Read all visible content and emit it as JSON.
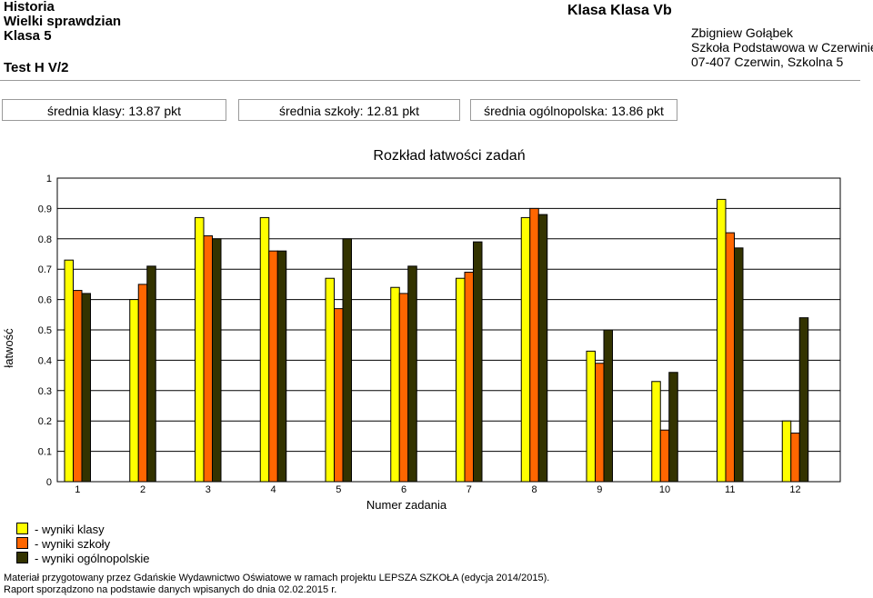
{
  "header": {
    "subject": "Historia",
    "test_name": "Wielki sprawdzian",
    "grade": "Klasa 5",
    "test_code": "Test H V/2",
    "class_label": "Klasa Klasa Vb",
    "teacher": "Zbigniew Gołąbek",
    "school": "Szkoła Podstawowa w Czerwinie",
    "address": "07-407 Czerwin, Szkolna 5"
  },
  "stats": {
    "class_avg": "średnia klasy: 13.87 pkt",
    "school_avg": "średnia szkoły: 12.81 pkt",
    "national_avg": "średnia ogólnopolska: 13.86 pkt"
  },
  "chart_data": {
    "type": "bar",
    "title": "Rozkład łatwości zadań",
    "xlabel": "Numer zadania",
    "ylabel": "łatwość",
    "ylim": [
      0,
      1
    ],
    "yticks": [
      "0",
      "0.1",
      "0.2",
      "0.3",
      "0.4",
      "0.5",
      "0.6",
      "0.7",
      "0.8",
      "0.9",
      "1"
    ],
    "grid": true,
    "categories": [
      "1",
      "2",
      "3",
      "4",
      "5",
      "6",
      "7",
      "8",
      "9",
      "10",
      "11",
      "12"
    ],
    "series": [
      {
        "name": "- wyniki klasy",
        "color": "#ffff00",
        "values": [
          0.73,
          0.6,
          0.87,
          0.87,
          0.67,
          0.64,
          0.67,
          0.87,
          0.43,
          0.33,
          0.93,
          0.2
        ]
      },
      {
        "name": "- wyniki szkoły",
        "color": "#ff6600",
        "values": [
          0.63,
          0.65,
          0.81,
          0.76,
          0.57,
          0.62,
          0.69,
          0.9,
          0.39,
          0.17,
          0.82,
          0.16
        ]
      },
      {
        "name": "- wyniki ogólnopolskie",
        "color": "#333300",
        "values": [
          0.62,
          0.71,
          0.8,
          0.76,
          0.8,
          0.71,
          0.79,
          0.88,
          0.5,
          0.36,
          0.77,
          0.54
        ]
      }
    ]
  },
  "footer": {
    "line1": "Materiał przygotowany przez Gdańskie Wydawnictwo Oświatowe w ramach projektu LEPSZA SZKOŁA (edycja 2014/2015).",
    "line2": "Raport sporządzono na podstawie danych wpisanych do dnia 02.02.2015 r."
  }
}
